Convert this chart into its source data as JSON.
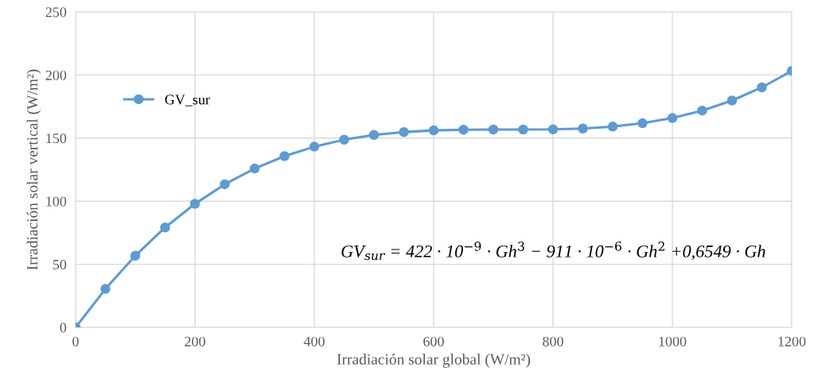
{
  "chart_data": {
    "type": "line",
    "xlabel": "Irradiación solar global (W/m²)",
    "ylabel": "Irradiación solar vertical (W/m²)",
    "x": [
      0,
      50,
      100,
      150,
      200,
      250,
      300,
      350,
      400,
      450,
      500,
      550,
      600,
      650,
      700,
      750,
      800,
      850,
      900,
      950,
      1000,
      1050,
      1100,
      1150,
      1200
    ],
    "series": [
      {
        "name": "GV_sur",
        "color": "#5b9bd5",
        "values": [
          0,
          30.5,
          56.8,
          79.2,
          97.9,
          113.4,
          125.9,
          135.7,
          143.2,
          148.7,
          152.5,
          154.8,
          156.1,
          156.7,
          156.8,
          156.8,
          156.9,
          157.6,
          159.1,
          161.8,
          165.9,
          171.8,
          179.8,
          190.2,
          203.3
        ]
      }
    ],
    "xlim": [
      0,
      1200
    ],
    "xticks": [
      0,
      200,
      400,
      600,
      800,
      1000,
      1200
    ],
    "ylim": [
      0,
      250
    ],
    "yticks": [
      0,
      50,
      100,
      150,
      200,
      250
    ],
    "grid": true,
    "legend": "top left",
    "marker": "circle",
    "line_style": "solid",
    "annotations": [
      "GV$_{sur}$ = 422 · 10$^{−9}$ · Gh$^{3}$ − 911 · 10$^{−6}$ · Gh$^{2}$ +0,6549 · Gh"
    ]
  }
}
